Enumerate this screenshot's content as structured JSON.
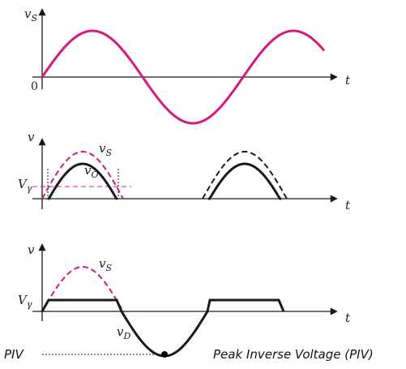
{
  "panel1": {
    "y_label_main": "v",
    "y_label_sub": "S",
    "x_label": "t",
    "origin_label": "0"
  },
  "panel2": {
    "y_label": "v",
    "x_label": "t",
    "vs_label_main": "v",
    "vs_label_sub": "S",
    "vo_label_main": "v",
    "vo_label_sub": "O",
    "vgamma_main": "V",
    "vgamma_sub": "γ"
  },
  "panel3": {
    "y_label": "v",
    "x_label": "t",
    "vs_label_main": "v",
    "vs_label_sub": "S",
    "vd_label_main": "v",
    "vd_label_sub": "D",
    "vgamma_main": "V",
    "vgamma_sub": "γ"
  },
  "annotations": {
    "piv_left": "PIV",
    "piv_right": "Peak Inverse Voltage (PIV)"
  },
  "colors": {
    "source_wave": "#d6197e",
    "output_wave": "#1a1a1a",
    "axis": "#1a1a1a"
  }
}
